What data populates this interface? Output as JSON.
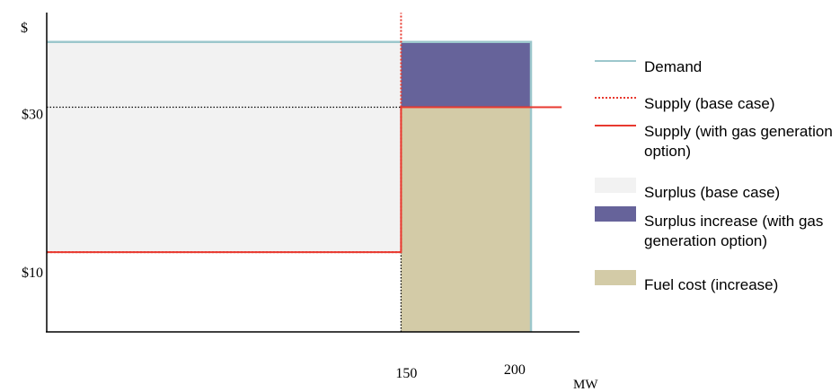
{
  "chart_data": {
    "type": "area",
    "title": "",
    "xlabel": "MW",
    "ylabel": "$",
    "xlim": [
      0,
      230
    ],
    "ylim": [
      0,
      44
    ],
    "x_ticks": [
      {
        "value": 150,
        "label": "150"
      },
      {
        "value": 200,
        "label": "200"
      }
    ],
    "y_ticks": [
      {
        "value": 10,
        "label": "$10"
      },
      {
        "value": 30,
        "label": "$30"
      }
    ],
    "series": [
      {
        "name": "Demand",
        "type": "line",
        "color": "#9cc7cc",
        "style": "solid",
        "points": [
          [
            0,
            40
          ],
          [
            205,
            40
          ],
          [
            205,
            0
          ]
        ]
      },
      {
        "name": "Supply (base case)",
        "type": "line",
        "color": "#e8392f",
        "style": "dotted",
        "points": [
          [
            0,
            11
          ],
          [
            150,
            11
          ],
          [
            150,
            44
          ]
        ]
      },
      {
        "name": "Supply (with gas generation option)",
        "type": "line",
        "color": "#e8392f",
        "style": "solid",
        "points": [
          [
            0,
            11
          ],
          [
            150,
            11
          ],
          [
            150,
            31
          ],
          [
            218,
            31
          ]
        ]
      }
    ],
    "areas": [
      {
        "name": "Surplus (base case)",
        "color": "#f2f2f2",
        "x": [
          0,
          150
        ],
        "y": [
          11,
          40
        ]
      },
      {
        "name": "Surplus increase (with gas generation option)",
        "color": "#66639a",
        "x": [
          150,
          205
        ],
        "y": [
          31,
          40
        ]
      },
      {
        "name": "Fuel cost (increase)",
        "color": "#d3cba7",
        "x": [
          150,
          205
        ],
        "y": [
          0,
          31
        ]
      }
    ],
    "reference_lines": [
      {
        "orientation": "horizontal",
        "value": 31,
        "from": 0,
        "to": 150,
        "style": "dotted",
        "color": "#000000"
      },
      {
        "orientation": "vertical",
        "value": 150,
        "from": 0,
        "to": 11,
        "style": "dotted",
        "color": "#000000"
      }
    ],
    "legend": {
      "position": "right",
      "items": [
        {
          "name": "Demand",
          "swatch": "line",
          "style": "solid",
          "color": "#9cc7cc"
        },
        {
          "name": "Supply (base case)",
          "swatch": "line",
          "style": "dotted",
          "color": "#e8392f"
        },
        {
          "name": "Supply (with gas generation option)",
          "swatch": "line",
          "style": "solid",
          "color": "#e8392f"
        },
        {
          "name": "Surplus (base case)",
          "swatch": "box",
          "color": "#f2f2f2"
        },
        {
          "name": "Surplus increase (with gas generation option)",
          "swatch": "box",
          "color": "#66639a"
        },
        {
          "name": "Fuel cost (increase)",
          "swatch": "box",
          "color": "#d3cba7"
        }
      ]
    },
    "grid": false
  }
}
